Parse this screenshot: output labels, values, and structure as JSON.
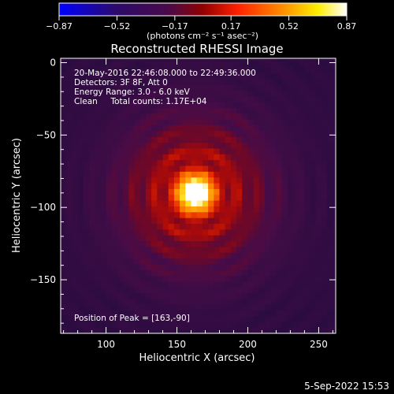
{
  "chart_data": {
    "type": "heatmap",
    "title": "Reconstructed RHESSI Image",
    "xlabel": "Heliocentric X (arcsec)",
    "ylabel": "Heliocentric Y (arcsec)",
    "xlim": [
      68,
      262
    ],
    "ylim": [
      -187,
      3
    ],
    "x_ticks": [
      "100",
      "150",
      "200",
      "250"
    ],
    "x_tick_values": [
      100,
      150,
      200,
      250
    ],
    "y_ticks": [
      "0",
      "−50",
      "−100",
      "−150"
    ],
    "y_tick_values": [
      0,
      -50,
      -100,
      -150
    ],
    "colorbar": {
      "min": -0.87,
      "max": 0.87,
      "ticks": [
        "−0.87",
        "−0.52",
        "−0.17",
        "0.17",
        "0.52",
        "0.87"
      ],
      "tick_values": [
        -0.87,
        -0.52,
        -0.17,
        0.17,
        0.52,
        0.87
      ],
      "unit_label": "(photons cm⁻² s⁻¹ asec⁻²)"
    },
    "colormap": [
      "#0000ff",
      "#2a0a4a",
      "#500a50",
      "#ff0000",
      "#ff8800",
      "#ffff00",
      "#ffffff"
    ],
    "peak": [
      163,
      -90
    ],
    "annotations": [
      "20-May-2016 22:46:08.000 to 22:49:36.000",
      "Detectors: 3F 8F, Att 0",
      "Energy Range: 3.0 - 6.0 keV",
      "Clean     Total counts: 1.17E+04"
    ],
    "peak_label": "Position of Peak = [163,-90]"
  },
  "footer": {
    "timestamp": "5-Sep-2022 15:53"
  }
}
